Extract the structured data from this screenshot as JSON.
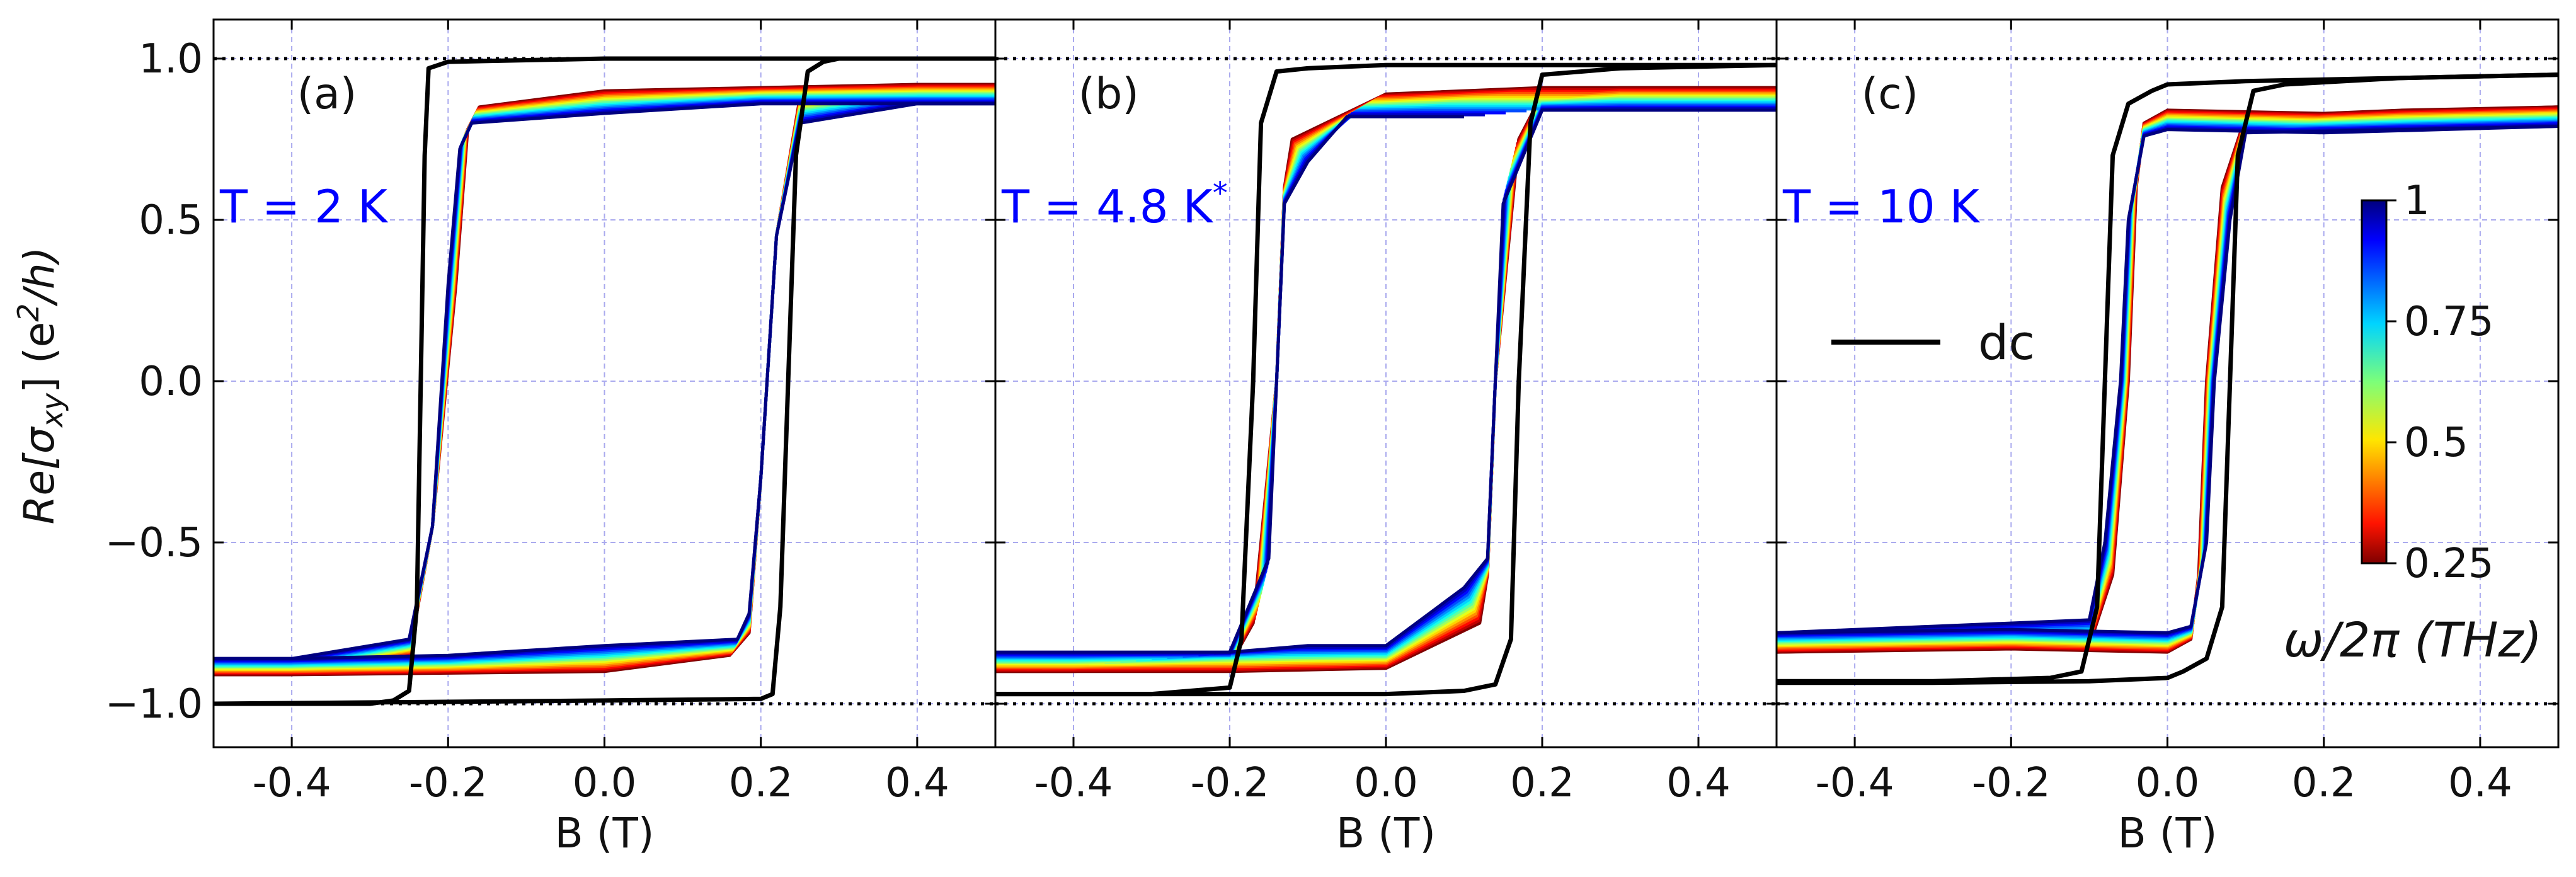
{
  "chart_data": {
    "type": "line",
    "ylabel": "Re[σxy] (e²/h)",
    "ylabel_parts": {
      "main": "Re[σ",
      "sub": "xy",
      "mid": "] (e",
      "sup": "2",
      "end": "/h)"
    },
    "yticks": [
      1.0,
      0.5,
      0.0,
      -0.5,
      -1.0
    ],
    "ytick_labels": [
      "1.0",
      "0.5",
      "0.0",
      "−0.5",
      "−1.0"
    ],
    "xticks": [
      -0.4,
      -0.2,
      0.0,
      0.2,
      0.4
    ],
    "xtick_labels": [
      "-0.4",
      "-0.2",
      "0.0",
      "0.2",
      "0.4"
    ],
    "xlim": [
      -0.5,
      0.5
    ],
    "ylim": [
      -1.13,
      1.13
    ],
    "reference_lines": [
      1.0,
      -1.0
    ],
    "colors": {
      "accent": "#0000ff",
      "dc": "#000000",
      "grid": "#aaaaee"
    },
    "frequency_series": [
      0.25,
      0.3,
      0.35,
      0.4,
      0.45,
      0.5,
      0.55,
      0.6,
      0.65,
      0.7,
      0.75,
      0.8,
      0.85,
      0.9,
      0.95,
      1.0
    ],
    "panels": [
      {
        "id": "a",
        "letter": "(a)",
        "xlabel": "B (T)",
        "temp_main": "T = 2 K",
        "temp_sup": "",
        "dc_up": [
          [
            -0.5,
            -1.0
          ],
          [
            -0.3,
            -1.0
          ],
          [
            -0.27,
            -0.99
          ],
          [
            -0.25,
            -0.96
          ],
          [
            -0.24,
            -0.7
          ],
          [
            -0.235,
            0.0
          ],
          [
            -0.23,
            0.7
          ],
          [
            -0.225,
            0.97
          ],
          [
            -0.2,
            0.99
          ],
          [
            0.0,
            1.0
          ],
          [
            0.5,
            1.0
          ]
        ],
        "dc_down": [
          [
            0.5,
            1.0
          ],
          [
            0.3,
            1.0
          ],
          [
            0.28,
            0.99
          ],
          [
            0.26,
            0.96
          ],
          [
            0.245,
            0.7
          ],
          [
            0.235,
            0.0
          ],
          [
            0.225,
            -0.7
          ],
          [
            0.215,
            -0.97
          ],
          [
            0.2,
            -0.985
          ],
          [
            0.0,
            -0.99
          ],
          [
            -0.5,
            -1.0
          ]
        ],
        "thz_low": {
          "up": [
            [
              -0.5,
              -0.91
            ],
            [
              -0.4,
              -0.91
            ],
            [
              -0.25,
              -0.85
            ],
            [
              -0.22,
              -0.45
            ],
            [
              -0.19,
              0.3
            ],
            [
              -0.175,
              0.78
            ],
            [
              -0.16,
              0.85
            ],
            [
              0.0,
              0.9
            ],
            [
              0.2,
              0.91
            ],
            [
              0.4,
              0.92
            ],
            [
              0.5,
              0.92
            ]
          ],
          "down": [
            [
              0.5,
              0.92
            ],
            [
              0.4,
              0.92
            ],
            [
              0.25,
              0.88
            ],
            [
              0.22,
              0.45
            ],
            [
              0.2,
              -0.3
            ],
            [
              0.185,
              -0.78
            ],
            [
              0.16,
              -0.85
            ],
            [
              0.0,
              -0.9
            ],
            [
              -0.2,
              -0.905
            ],
            [
              -0.4,
              -0.91
            ],
            [
              -0.5,
              -0.91
            ]
          ]
        },
        "thz_high": {
          "up": [
            [
              -0.5,
              -0.86
            ],
            [
              -0.4,
              -0.86
            ],
            [
              -0.25,
              -0.8
            ],
            [
              -0.22,
              -0.45
            ],
            [
              -0.2,
              0.3
            ],
            [
              -0.185,
              0.72
            ],
            [
              -0.17,
              0.8
            ],
            [
              0.0,
              0.83
            ],
            [
              0.2,
              0.86
            ],
            [
              0.4,
              0.86
            ],
            [
              0.5,
              0.86
            ]
          ],
          "down": [
            [
              0.5,
              0.86
            ],
            [
              0.4,
              0.86
            ],
            [
              0.25,
              0.8
            ],
            [
              0.22,
              0.45
            ],
            [
              0.2,
              -0.3
            ],
            [
              0.185,
              -0.72
            ],
            [
              0.17,
              -0.8
            ],
            [
              0.0,
              -0.82
            ],
            [
              -0.2,
              -0.85
            ],
            [
              -0.4,
              -0.86
            ],
            [
              -0.5,
              -0.86
            ]
          ]
        }
      },
      {
        "id": "b",
        "letter": "(b)",
        "xlabel": "B (T)",
        "temp_main": "T = 4.8 K",
        "temp_sup": "*",
        "dc_up": [
          [
            -0.5,
            -0.97
          ],
          [
            -0.3,
            -0.97
          ],
          [
            -0.2,
            -0.95
          ],
          [
            -0.185,
            -0.8
          ],
          [
            -0.17,
            0.0
          ],
          [
            -0.16,
            0.8
          ],
          [
            -0.14,
            0.96
          ],
          [
            -0.1,
            0.97
          ],
          [
            0.0,
            0.98
          ],
          [
            0.5,
            0.98
          ]
        ],
        "dc_down": [
          [
            0.5,
            0.98
          ],
          [
            0.3,
            0.97
          ],
          [
            0.2,
            0.95
          ],
          [
            0.185,
            0.8
          ],
          [
            0.17,
            0.0
          ],
          [
            0.16,
            -0.8
          ],
          [
            0.14,
            -0.94
          ],
          [
            0.1,
            -0.96
          ],
          [
            0.0,
            -0.97
          ],
          [
            -0.5,
            -0.97
          ]
        ],
        "thz_low": {
          "up": [
            [
              -0.5,
              -0.9
            ],
            [
              -0.4,
              -0.9
            ],
            [
              -0.2,
              -0.88
            ],
            [
              -0.17,
              -0.75
            ],
            [
              -0.14,
              0.0
            ],
            [
              -0.13,
              0.6
            ],
            [
              -0.12,
              0.75
            ],
            [
              0.0,
              0.89
            ],
            [
              0.2,
              0.91
            ],
            [
              0.5,
              0.91
            ]
          ],
          "down": [
            [
              0.5,
              0.91
            ],
            [
              0.3,
              0.91
            ],
            [
              0.2,
              0.89
            ],
            [
              0.17,
              0.75
            ],
            [
              0.14,
              0.0
            ],
            [
              0.13,
              -0.6
            ],
            [
              0.12,
              -0.75
            ],
            [
              0.0,
              -0.89
            ],
            [
              -0.2,
              -0.9
            ],
            [
              -0.5,
              -0.9
            ]
          ]
        },
        "thz_high": {
          "up": [
            [
              -0.5,
              -0.84
            ],
            [
              -0.4,
              -0.84
            ],
            [
              -0.2,
              -0.84
            ],
            [
              -0.15,
              -0.55
            ],
            [
              -0.14,
              0.0
            ],
            [
              -0.13,
              0.55
            ],
            [
              -0.1,
              0.68
            ],
            [
              -0.05,
              0.82
            ],
            [
              0.0,
              0.82
            ],
            [
              0.1,
              0.82
            ],
            [
              0.2,
              0.84
            ],
            [
              0.5,
              0.84
            ]
          ],
          "down": [
            [
              0.5,
              0.84
            ],
            [
              0.3,
              0.84
            ],
            [
              0.2,
              0.84
            ],
            [
              0.15,
              0.55
            ],
            [
              0.14,
              0.0
            ],
            [
              0.13,
              -0.55
            ],
            [
              0.1,
              -0.64
            ],
            [
              0.0,
              -0.82
            ],
            [
              -0.1,
              -0.82
            ],
            [
              -0.2,
              -0.84
            ],
            [
              -0.5,
              -0.84
            ]
          ]
        }
      },
      {
        "id": "c",
        "letter": "(c)",
        "xlabel": "B (T)",
        "temp_main": "T = 10 K",
        "temp_sup": "",
        "dc_up": [
          [
            -0.5,
            -0.93
          ],
          [
            -0.3,
            -0.93
          ],
          [
            -0.15,
            -0.92
          ],
          [
            -0.11,
            -0.9
          ],
          [
            -0.09,
            -0.7
          ],
          [
            -0.08,
            0.0
          ],
          [
            -0.07,
            0.7
          ],
          [
            -0.05,
            0.86
          ],
          [
            -0.02,
            0.9
          ],
          [
            0.0,
            0.92
          ],
          [
            0.1,
            0.93
          ],
          [
            0.3,
            0.94
          ],
          [
            0.5,
            0.95
          ]
        ],
        "dc_down": [
          [
            0.5,
            0.95
          ],
          [
            0.3,
            0.94
          ],
          [
            0.15,
            0.92
          ],
          [
            0.11,
            0.9
          ],
          [
            0.09,
            0.7
          ],
          [
            0.08,
            0.0
          ],
          [
            0.07,
            -0.7
          ],
          [
            0.05,
            -0.86
          ],
          [
            0.02,
            -0.9
          ],
          [
            0.0,
            -0.92
          ],
          [
            -0.1,
            -0.93
          ],
          [
            -0.3,
            -0.935
          ],
          [
            -0.5,
            -0.935
          ]
        ],
        "thz_low": {
          "up": [
            [
              -0.5,
              -0.84
            ],
            [
              -0.3,
              -0.83
            ],
            [
              -0.1,
              -0.82
            ],
            [
              -0.07,
              -0.6
            ],
            [
              -0.05,
              0.0
            ],
            [
              -0.04,
              0.6
            ],
            [
              -0.03,
              0.8
            ],
            [
              0.0,
              0.84
            ],
            [
              0.2,
              0.83
            ],
            [
              0.5,
              0.85
            ]
          ],
          "down": [
            [
              0.5,
              0.85
            ],
            [
              0.3,
              0.84
            ],
            [
              0.1,
              0.82
            ],
            [
              0.07,
              0.6
            ],
            [
              0.05,
              0.0
            ],
            [
              0.04,
              -0.6
            ],
            [
              0.03,
              -0.8
            ],
            [
              0.0,
              -0.84
            ],
            [
              -0.2,
              -0.83
            ],
            [
              -0.5,
              -0.84
            ]
          ]
        },
        "thz_high": {
          "up": [
            [
              -0.5,
              -0.78
            ],
            [
              -0.3,
              -0.76
            ],
            [
              -0.1,
              -0.74
            ],
            [
              -0.08,
              -0.5
            ],
            [
              -0.06,
              0.0
            ],
            [
              -0.05,
              0.5
            ],
            [
              -0.03,
              0.76
            ],
            [
              0.0,
              0.78
            ],
            [
              0.2,
              0.77
            ],
            [
              0.5,
              0.79
            ]
          ],
          "down": [
            [
              0.5,
              0.79
            ],
            [
              0.3,
              0.78
            ],
            [
              0.1,
              0.77
            ],
            [
              0.08,
              0.5
            ],
            [
              0.06,
              0.0
            ],
            [
              0.05,
              -0.5
            ],
            [
              0.03,
              -0.76
            ],
            [
              0.0,
              -0.78
            ],
            [
              -0.2,
              -0.77
            ],
            [
              -0.5,
              -0.78
            ]
          ]
        }
      }
    ],
    "legend": {
      "label": "dc"
    },
    "colorbar": {
      "ticks": [
        1,
        0.75,
        0.5,
        0.25
      ],
      "tick_labels": [
        "1",
        "0.75",
        "0.5",
        "0.25"
      ],
      "label": "ω/2π (THz)",
      "range": [
        0.25,
        1.0
      ],
      "colormap": "jet_r"
    }
  }
}
